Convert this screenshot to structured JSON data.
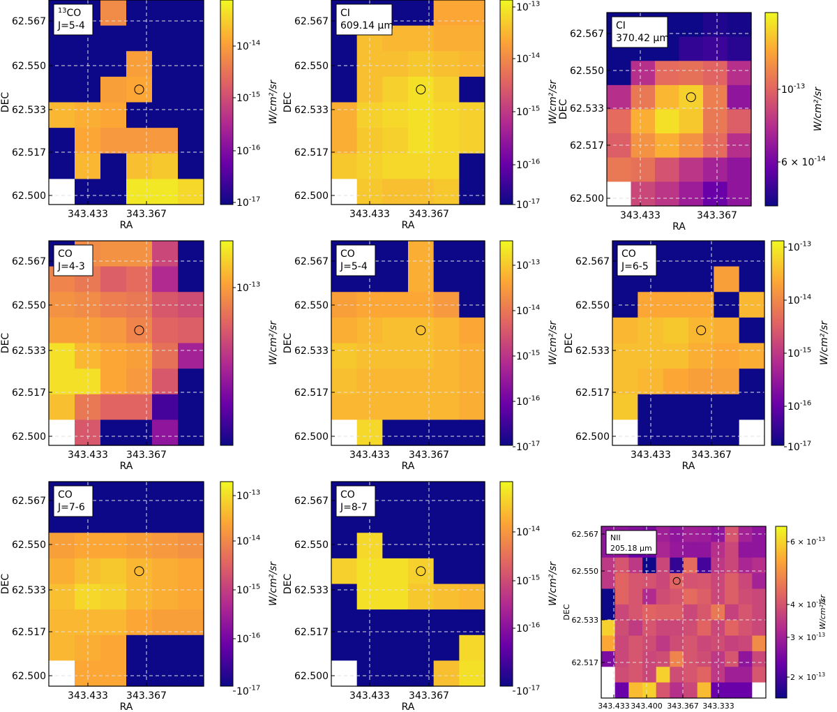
{
  "figure": {
    "cmap": [
      "#0d0887",
      "#6a00a8",
      "#b12a90",
      "#e16462",
      "#fca636",
      "#f0f921"
    ],
    "empty_color": "#ffffff",
    "grid_color": "#e0e0e0"
  },
  "chart_data": [
    {
      "type": "heatmap",
      "xlabel": "RA",
      "ylabel": "DEC",
      "label_lines": [
        "CO-13 J=5-4"
      ],
      "label_sup": "13",
      "label_rest": "CO",
      "label_line2": "J=5-4",
      "xticks": [
        "343.433",
        "343.367"
      ],
      "yticks": [
        "62.567",
        "62.550",
        "62.533",
        "62.517",
        "62.500"
      ],
      "colorbar_label": "W/cm²/sr",
      "colorbar_ticks": [
        "10^-14",
        "10^-15",
        "10^-16",
        "10^-17"
      ],
      "values": [
        [
          0.0,
          0.0,
          0.72,
          0.0,
          0.0,
          0.0
        ],
        [
          0.0,
          0.0,
          0.0,
          0.0,
          0.0,
          0.0
        ],
        [
          0.0,
          0.0,
          0.0,
          0.78,
          0.0,
          0.0
        ],
        [
          0.0,
          0.0,
          0.78,
          0.8,
          0.0,
          0.0
        ],
        [
          0.84,
          0.82,
          0.8,
          0.0,
          0.0,
          0.0
        ],
        [
          0.0,
          0.8,
          0.76,
          0.76,
          0.76,
          0.0
        ],
        [
          0.0,
          0.84,
          0.0,
          0.86,
          0.88,
          0.0
        ],
        [
          null,
          0.0,
          0.0,
          0.96,
          0.96,
          0.92
        ]
      ],
      "marker": {
        "col": 3.5,
        "row": 3.5
      }
    },
    {
      "type": "heatmap",
      "xlabel": "RA",
      "ylabel": "DEC",
      "label_line1": "CI",
      "label_line2": "609.14 μm",
      "xticks": [
        "343.433",
        "343.367"
      ],
      "yticks": [
        "62.567",
        "62.550",
        "62.533",
        "62.517",
        "62.500"
      ],
      "colorbar_label": "W/cm²/sr",
      "colorbar_ticks": [
        "10^-13",
        "10^-14",
        "10^-15",
        "10^-16",
        "10^-17"
      ],
      "values": [
        [
          0.0,
          0.0,
          0.0,
          0.0,
          0.8,
          0.8
        ],
        [
          0.0,
          0.86,
          0.84,
          0.84,
          0.82,
          0.82
        ],
        [
          0.0,
          0.86,
          0.86,
          0.88,
          0.86,
          0.84
        ],
        [
          0.0,
          0.86,
          0.9,
          0.94,
          0.9,
          0.0
        ],
        [
          0.82,
          0.9,
          0.92,
          0.94,
          0.92,
          0.9
        ],
        [
          0.82,
          0.88,
          0.9,
          0.94,
          0.92,
          0.9
        ],
        [
          0.88,
          0.9,
          0.92,
          0.92,
          0.92,
          0.0
        ],
        [
          null,
          0.88,
          0.86,
          0.86,
          0.88,
          0.0
        ]
      ],
      "marker": {
        "col": 3.5,
        "row": 3.5
      }
    },
    {
      "type": "heatmap",
      "xlabel": "RA",
      "ylabel": "DEC",
      "label_line1": "CI",
      "label_line2": "370.42 μm",
      "xticks": [
        "343.433",
        "343.367"
      ],
      "yticks": [
        "62.567",
        "62.550",
        "62.533",
        "62.517",
        "62.500"
      ],
      "colorbar_label": "W/cm²/sr",
      "colorbar_ticks": [
        "10^-13",
        "6 × 10^-14"
      ],
      "values": [
        [
          0.0,
          0.0,
          0.0,
          0.0,
          0.04,
          0.02
        ],
        [
          0.0,
          0.0,
          0.0,
          0.08,
          0.1,
          0.06
        ],
        [
          0.0,
          0.42,
          0.62,
          0.64,
          0.6,
          0.42
        ],
        [
          0.42,
          0.66,
          0.84,
          0.9,
          0.68,
          0.3
        ],
        [
          0.62,
          0.82,
          0.94,
          0.88,
          0.66,
          0.58
        ],
        [
          0.58,
          0.74,
          0.82,
          0.74,
          0.62,
          0.42
        ],
        [
          0.66,
          0.64,
          0.54,
          0.44,
          0.36,
          0.3
        ],
        [
          null,
          0.5,
          0.44,
          0.34,
          0.2,
          0.3
        ]
      ],
      "marker": {
        "col": 3.5,
        "row": 3.5
      }
    },
    {
      "type": "heatmap",
      "xlabel": "RA",
      "ylabel": "DEC",
      "label_line1": "CO",
      "label_line2": "J=4-3",
      "xticks": [
        "343.433",
        "343.367"
      ],
      "yticks": [
        "62.567",
        "62.550",
        "62.533",
        "62.517",
        "62.500"
      ],
      "colorbar_label": "W/cm²/sr",
      "colorbar_ticks": [
        "10^-13"
      ],
      "values": [
        [
          0.0,
          0.72,
          0.74,
          0.74,
          0.5,
          0.0
        ],
        [
          0.7,
          0.66,
          0.58,
          0.62,
          0.4,
          0.0
        ],
        [
          0.74,
          0.72,
          0.68,
          0.66,
          0.56,
          0.52
        ],
        [
          0.78,
          0.78,
          0.76,
          0.7,
          0.6,
          0.58
        ],
        [
          0.94,
          0.84,
          0.8,
          0.78,
          0.64,
          0.36
        ],
        [
          0.94,
          0.94,
          0.8,
          0.76,
          0.56,
          0.0
        ],
        [
          0.86,
          0.66,
          0.6,
          0.6,
          0.12,
          0.0
        ],
        [
          null,
          0.56,
          0.0,
          0.0,
          0.3,
          0.0
        ]
      ],
      "marker": {
        "col": 3.5,
        "row": 3.5
      }
    },
    {
      "type": "heatmap",
      "xlabel": "RA",
      "ylabel": "DEC",
      "label_line1": "CO",
      "label_line2": "J=5-4",
      "xticks": [
        "343.433",
        "343.367"
      ],
      "yticks": [
        "62.567",
        "62.550",
        "62.533",
        "62.517",
        "62.500"
      ],
      "colorbar_label": "W/cm²/sr",
      "colorbar_ticks": [
        "10^-13",
        "10^-14",
        "10^-15",
        "10^-16",
        "10^-17"
      ],
      "values": [
        [
          0.0,
          0.0,
          0.0,
          0.82,
          0.0,
          0.0
        ],
        [
          0.0,
          0.0,
          0.0,
          0.82,
          0.0,
          0.0
        ],
        [
          0.78,
          0.8,
          0.8,
          0.8,
          0.76,
          0.0
        ],
        [
          0.82,
          0.84,
          0.86,
          0.86,
          0.84,
          0.8
        ],
        [
          0.88,
          0.86,
          0.86,
          0.86,
          0.84,
          0.82
        ],
        [
          0.86,
          0.84,
          0.84,
          0.84,
          0.84,
          0.82
        ],
        [
          0.84,
          0.84,
          0.84,
          0.84,
          0.84,
          0.82
        ],
        [
          null,
          0.92,
          0.0,
          0.0,
          0.0,
          0.0
        ]
      ],
      "marker": {
        "col": 3.5,
        "row": 3.5
      }
    },
    {
      "type": "heatmap",
      "xlabel": "RA",
      "ylabel": "DEC",
      "label_line1": "CO",
      "label_line2": "J=6-5",
      "xticks": [
        "343.433",
        "343.367"
      ],
      "yticks": [
        "62.567",
        "62.550",
        "62.533",
        "62.517",
        "62.500"
      ],
      "colorbar_label": "W/cm²/sr",
      "colorbar_ticks": [
        "10^-13",
        "10^-14",
        "10^-15",
        "10^-16",
        "10^-17"
      ],
      "values": [
        [
          0.0,
          0.0,
          0.0,
          0.0,
          0.0,
          0.0
        ],
        [
          0.0,
          0.0,
          0.0,
          0.0,
          0.78,
          0.0
        ],
        [
          0.0,
          0.8,
          0.8,
          0.8,
          0.0,
          0.84
        ],
        [
          0.84,
          0.86,
          0.88,
          0.84,
          0.82,
          0.0
        ],
        [
          0.86,
          0.86,
          0.86,
          0.82,
          0.8,
          0.82
        ],
        [
          0.86,
          0.84,
          0.8,
          0.78,
          0.78,
          0.0
        ],
        [
          0.88,
          0.0,
          0.0,
          0.0,
          0.0,
          0.0
        ],
        [
          null,
          0.0,
          0.0,
          0.0,
          0.0,
          null
        ]
      ],
      "marker": {
        "col": 3.5,
        "row": 3.5
      }
    },
    {
      "type": "heatmap",
      "xlabel": "RA",
      "ylabel": "DEC",
      "label_line1": "CO",
      "label_line2": "J=7-6",
      "xticks": [
        "343.433",
        "343.367"
      ],
      "yticks": [
        "62.567",
        "62.550",
        "62.533",
        "62.517",
        "62.500"
      ],
      "colorbar_label": "W/cm²/sr",
      "colorbar_ticks": [
        "10^-13",
        "10^-14",
        "10^-15",
        "10^-16",
        "10^-17"
      ],
      "values": [
        [
          0.0,
          0.0,
          0.0,
          0.0,
          0.0,
          0.0
        ],
        [
          0.0,
          0.0,
          0.0,
          0.0,
          0.0,
          0.0
        ],
        [
          0.78,
          0.8,
          0.8,
          0.78,
          0.76,
          0.74
        ],
        [
          0.82,
          0.86,
          0.88,
          0.84,
          0.82,
          0.8
        ],
        [
          0.86,
          0.92,
          0.9,
          0.84,
          0.82,
          0.8
        ],
        [
          0.84,
          0.84,
          0.84,
          0.8,
          0.78,
          0.78
        ],
        [
          0.84,
          0.82,
          0.8,
          0.0,
          0.0,
          0.0
        ],
        [
          null,
          0.8,
          0.8,
          0.0,
          0.0,
          0.0
        ]
      ],
      "marker": {
        "col": 3.5,
        "row": 3.5
      }
    },
    {
      "type": "heatmap",
      "xlabel": "RA",
      "ylabel": "DEC",
      "label_line1": "CO",
      "label_line2": "J=8-7",
      "xticks": [
        "343.433",
        "343.367"
      ],
      "yticks": [
        "62.567",
        "62.550",
        "62.533",
        "62.517",
        "62.500"
      ],
      "colorbar_label": "W/cm²/sr",
      "colorbar_ticks": [
        "10^-14",
        "10^-15",
        "10^-16",
        "10^-17"
      ],
      "values": [
        [
          0.0,
          0.0,
          0.0,
          0.0,
          0.0,
          0.0
        ],
        [
          0.0,
          0.0,
          0.0,
          0.0,
          0.0,
          0.0
        ],
        [
          0.0,
          0.92,
          0.0,
          0.0,
          0.0,
          0.0
        ],
        [
          0.9,
          0.94,
          0.94,
          0.9,
          0.0,
          0.0
        ],
        [
          0.0,
          0.94,
          0.94,
          0.88,
          0.86,
          0.84
        ],
        [
          0.0,
          0.0,
          0.0,
          0.0,
          0.0,
          0.0
        ],
        [
          0.0,
          0.0,
          0.0,
          0.0,
          0.0,
          0.92
        ],
        [
          null,
          0.0,
          0.0,
          0.0,
          0.86,
          0.94
        ]
      ],
      "marker": {
        "col": 3.5,
        "row": 3.5
      }
    },
    {
      "type": "heatmap",
      "xlabel": "RA",
      "ylabel": "DEC",
      "label_line1": "NII",
      "label_line2": "205.18 μm",
      "xticks": [
        "343.433",
        "343.400",
        "343.367",
        "343.333"
      ],
      "yticks": [
        "62.567",
        "62.550",
        "62.533",
        "62.517"
      ],
      "colorbar_label": "W/cm²/sr",
      "colorbar_ticks": [
        "6 × 10^-13",
        "4 × 10^-13",
        "3 × 10^-13",
        "2 × 10^-13"
      ],
      "values": [
        [
          0.3,
          0.3,
          0.28,
          0.25,
          0.35,
          0.3,
          0.35,
          0.34,
          0.3,
          0.55,
          0.36,
          0.3
        ],
        [
          0.3,
          0.3,
          0.2,
          0.2,
          0.38,
          0.32,
          0.3,
          0.3,
          0.42,
          0.5,
          0.3,
          0.3
        ],
        [
          0.45,
          0.55,
          0.45,
          0.0,
          0.5,
          0.08,
          0.62,
          0.12,
          0.45,
          0.5,
          0.38,
          0.42
        ],
        [
          0.45,
          0.6,
          0.55,
          0.54,
          0.5,
          0.6,
          0.54,
          0.55,
          0.5,
          0.58,
          0.5,
          0.36
        ],
        [
          0.0,
          0.6,
          0.55,
          0.4,
          0.52,
          0.55,
          0.62,
          0.58,
          0.5,
          0.58,
          0.52,
          0.5
        ],
        [
          0.0,
          0.5,
          0.55,
          0.6,
          0.58,
          0.58,
          0.5,
          0.56,
          0.66,
          0.48,
          0.55,
          0.5
        ],
        [
          0.9,
          0.52,
          0.46,
          0.55,
          0.5,
          0.5,
          0.52,
          0.6,
          0.5,
          0.6,
          0.54,
          0.5
        ],
        [
          0.8,
          0.5,
          0.55,
          0.52,
          0.45,
          0.52,
          0.55,
          0.5,
          0.52,
          0.48,
          0.5,
          0.72
        ],
        [
          0.25,
          0.5,
          0.55,
          0.5,
          0.52,
          0.7,
          0.55,
          0.52,
          0.45,
          0.55,
          0.3,
          0.5
        ],
        [
          null,
          0.52,
          0.55,
          0.5,
          0.9,
          0.52,
          0.55,
          0.6,
          0.45,
          0.35,
          0.35,
          0.55
        ],
        [
          null,
          0.2,
          0.85,
          0.9,
          0.55,
          0.42,
          0.5,
          0.85,
          0.2,
          0.2,
          0.2,
          null
        ]
      ],
      "marker": {
        "col": 5.5,
        "row": 3.5
      }
    }
  ]
}
